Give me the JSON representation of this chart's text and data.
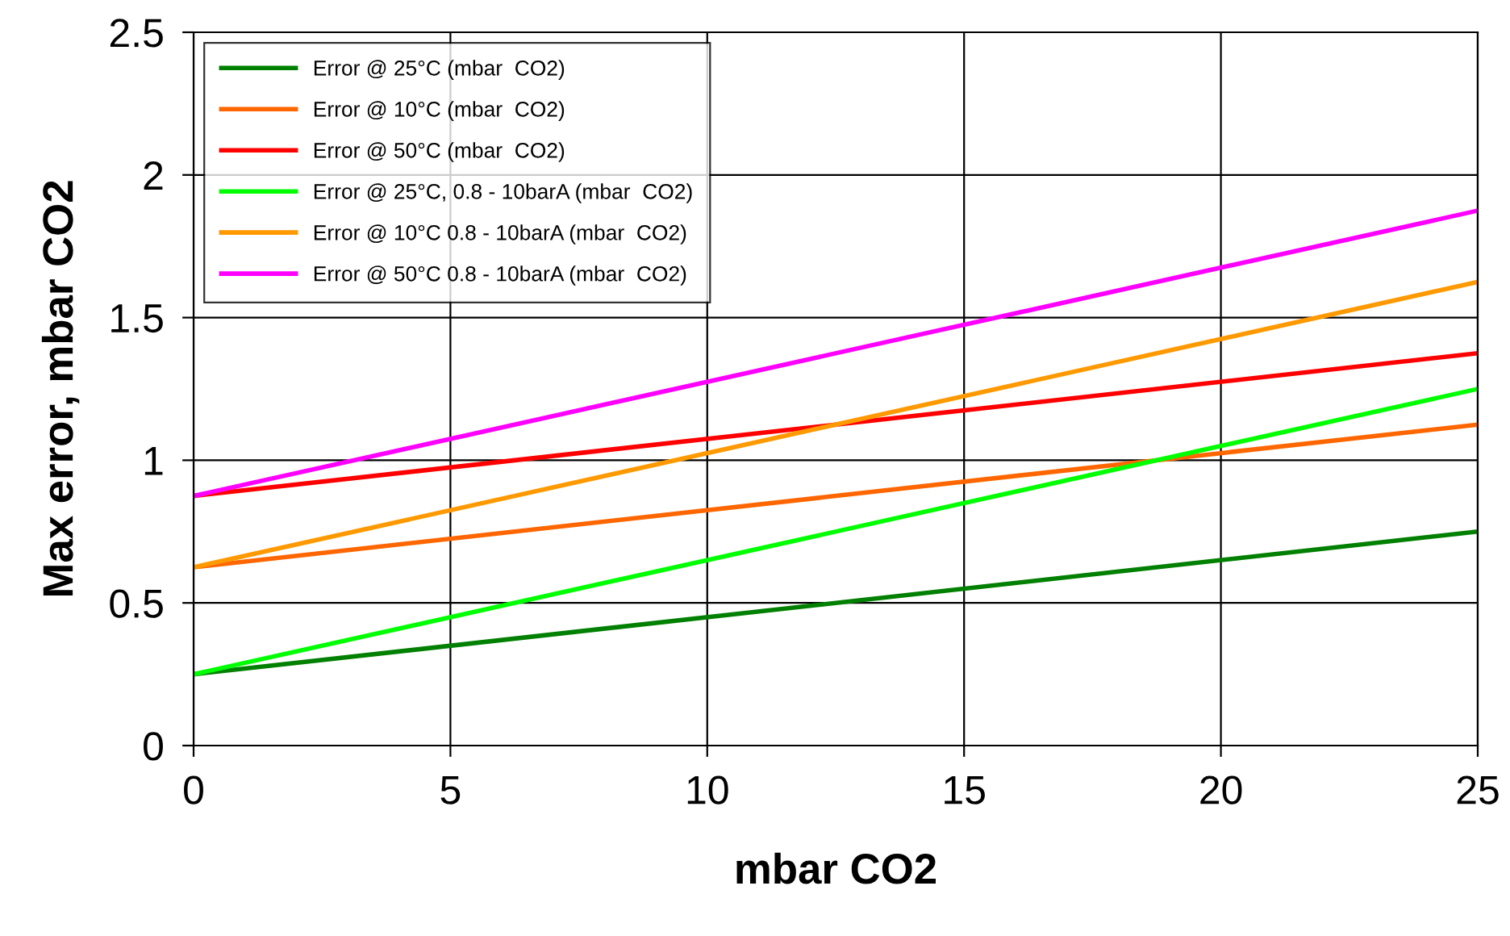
{
  "chart_data": {
    "type": "line",
    "xlabel": "mbar CO2",
    "ylabel": "Max error, mbar CO2",
    "x": [
      0,
      25
    ],
    "series": [
      {
        "name": "Error @ 25°C (mbar  CO2)",
        "color": "#008000",
        "values": [
          0.25,
          0.75
        ]
      },
      {
        "name": "Error @ 10°C (mbar  CO2)",
        "color": "#ff6600",
        "values": [
          0.625,
          1.125
        ]
      },
      {
        "name": "Error @ 50°C (mbar  CO2)",
        "color": "#ff0000",
        "values": [
          0.875,
          1.375
        ]
      },
      {
        "name": "Error @ 25°C, 0.8 - 10barA (mbar  CO2)",
        "color": "#00ff00",
        "values": [
          0.25,
          1.25
        ]
      },
      {
        "name": "Error @ 10°C 0.8 - 10barA (mbar  CO2)",
        "color": "#ff9900",
        "values": [
          0.625,
          1.625
        ]
      },
      {
        "name": "Error @ 50°C 0.8 - 10barA (mbar  CO2)",
        "color": "#ff00ff",
        "values": [
          0.875,
          1.875
        ]
      }
    ],
    "xlim": [
      0,
      25
    ],
    "xticks": [
      0,
      5,
      10,
      15,
      20,
      25
    ],
    "ylim": [
      0,
      2.5
    ],
    "yticks": [
      0,
      0.5,
      1,
      1.5,
      2,
      2.5
    ],
    "grid": true,
    "legend": "top left",
    "marker": "none",
    "line_style": "solid"
  }
}
